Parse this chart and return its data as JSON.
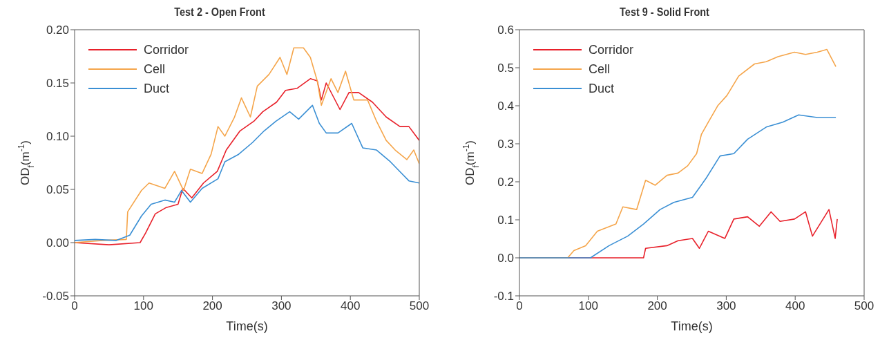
{
  "chart_data": [
    {
      "type": "line",
      "title": "Test 2 - Open Front",
      "xlabel": "Time(s)",
      "ylabel": "OD$_{f}$(m$^{-1}$)",
      "xlim": [
        0,
        500
      ],
      "xticks": [
        0,
        100,
        200,
        300,
        400,
        500
      ],
      "ylim": [
        -0.05,
        0.2
      ],
      "yticks": [
        -0.05,
        {
          "value": 0,
          "label": "0.00"
        },
        0.05,
        {
          "value": 0.1,
          "label": "0.10"
        },
        0.15,
        {
          "value": 0.2,
          "label": "0.20"
        }
      ],
      "grid": false,
      "legend": "top left",
      "marker": "none",
      "line_style": "solid",
      "series": [
        {
          "name": "Corridor",
          "color": "#e8202a",
          "x": [
            0,
            50,
            95,
            103,
            117,
            133,
            150,
            157,
            170,
            187,
            207,
            220,
            240,
            260,
            273,
            293,
            306,
            323,
            342,
            352,
            358,
            365,
            385,
            398,
            412,
            432,
            452,
            472,
            485,
            500
          ],
          "values": [
            0,
            -0.002,
            0,
            0.009,
            0.027,
            0.033,
            0.036,
            0.051,
            0.042,
            0.056,
            0.067,
            0.087,
            0.105,
            0.114,
            0.123,
            0.132,
            0.143,
            0.145,
            0.154,
            0.152,
            0.134,
            0.15,
            0.125,
            0.141,
            0.141,
            0.132,
            0.118,
            0.109,
            0.109,
            0.096
          ]
        },
        {
          "name": "Cell",
          "color": "#f5a54a",
          "x": [
            0,
            40,
            75,
            77,
            97,
            108,
            131,
            145,
            158,
            168,
            185,
            198,
            208,
            218,
            232,
            242,
            255,
            265,
            282,
            298,
            308,
            318,
            332,
            342,
            352,
            358,
            372,
            382,
            393,
            405,
            425,
            438,
            452,
            465,
            482,
            492,
            500
          ],
          "values": [
            0,
            0.002,
            0.003,
            0.029,
            0.049,
            0.056,
            0.051,
            0.067,
            0.049,
            0.069,
            0.065,
            0.083,
            0.109,
            0.1,
            0.118,
            0.136,
            0.118,
            0.147,
            0.158,
            0.174,
            0.158,
            0.183,
            0.183,
            0.174,
            0.152,
            0.129,
            0.154,
            0.141,
            0.161,
            0.134,
            0.134,
            0.114,
            0.096,
            0.087,
            0.078,
            0.087,
            0.074
          ]
        },
        {
          "name": "Duct",
          "color": "#3a8fd4",
          "x": [
            0,
            30,
            60,
            80,
            97,
            111,
            131,
            145,
            155,
            168,
            185,
            208,
            218,
            238,
            258,
            275,
            292,
            312,
            325,
            345,
            355,
            365,
            382,
            402,
            418,
            438,
            458,
            485,
            500
          ],
          "values": [
            0.002,
            0.003,
            0.002,
            0.007,
            0.025,
            0.036,
            0.04,
            0.038,
            0.049,
            0.038,
            0.051,
            0.06,
            0.076,
            0.083,
            0.094,
            0.105,
            0.114,
            0.123,
            0.116,
            0.129,
            0.112,
            0.103,
            0.103,
            0.112,
            0.089,
            0.087,
            0.076,
            0.058,
            0.056
          ]
        }
      ]
    },
    {
      "type": "line",
      "title": "Test 9 - Solid Front",
      "xlabel": "Time(s)",
      "ylabel": "OD$_{f}$(m$^{-1}$)",
      "xlim": [
        0,
        500
      ],
      "xticks": [
        0,
        100,
        200,
        300,
        400,
        500
      ],
      "ylim": [
        -0.1,
        0.6
      ],
      "yticks": [
        -0.1,
        {
          "value": 0,
          "label": "0.0"
        },
        0.1,
        0.2,
        0.3,
        0.4,
        0.5,
        0.6
      ],
      "grid": false,
      "legend": "top left",
      "marker": "none",
      "line_style": "solid",
      "series": [
        {
          "name": "Corridor",
          "color": "#e8202a",
          "x": [
            0,
            180,
            183,
            214,
            230,
            251,
            261,
            274,
            298,
            311,
            331,
            348,
            365,
            378,
            399,
            415,
            425,
            449,
            458,
            461
          ],
          "values": [
            0,
            0,
            0.025,
            0.032,
            0.045,
            0.051,
            0.025,
            0.07,
            0.051,
            0.102,
            0.108,
            0.083,
            0.121,
            0.096,
            0.102,
            0.121,
            0.057,
            0.127,
            0.051,
            0.102
          ]
        },
        {
          "name": "Cell",
          "color": "#f5a54a",
          "x": [
            0,
            70,
            79,
            96,
            113,
            140,
            150,
            170,
            183,
            197,
            214,
            230,
            244,
            257,
            264,
            274,
            288,
            301,
            318,
            341,
            358,
            375,
            399,
            415,
            432,
            446,
            459
          ],
          "values": [
            0,
            0,
            0.019,
            0.032,
            0.07,
            0.089,
            0.134,
            0.127,
            0.204,
            0.191,
            0.217,
            0.223,
            0.242,
            0.274,
            0.325,
            0.357,
            0.401,
            0.427,
            0.478,
            0.51,
            0.516,
            0.529,
            0.541,
            0.535,
            0.541,
            0.548,
            0.503
          ]
        },
        {
          "name": "Duct",
          "color": "#3a8fd4",
          "x": [
            0,
            103,
            130,
            157,
            180,
            204,
            224,
            251,
            271,
            291,
            311,
            331,
            358,
            382,
            405,
            432,
            459
          ],
          "values": [
            0,
            0,
            0.032,
            0.057,
            0.089,
            0.127,
            0.146,
            0.159,
            0.21,
            0.268,
            0.274,
            0.312,
            0.344,
            0.357,
            0.376,
            0.369,
            0.369
          ]
        }
      ]
    }
  ]
}
